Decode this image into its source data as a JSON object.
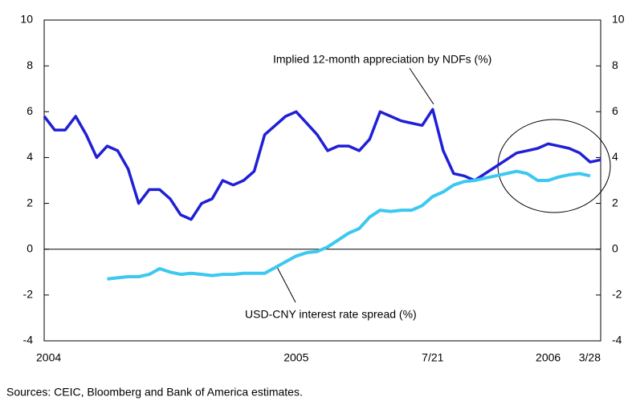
{
  "chart_data": {
    "type": "line",
    "annotations": [
      "Implied 12-month appreciation by NDFs (%)",
      "USD-CNY interest rate spread (%)"
    ],
    "source": "Sources: CEIC, Bloomberg and Bank of America estimates.",
    "categories": [
      "2004",
      null,
      null,
      null,
      null,
      null,
      null,
      null,
      null,
      null,
      null,
      null,
      null,
      null,
      null,
      null,
      null,
      null,
      null,
      null,
      null,
      null,
      null,
      null,
      "2005",
      null,
      null,
      null,
      null,
      null,
      null,
      null,
      null,
      null,
      null,
      null,
      null,
      "7/21",
      null,
      null,
      null,
      null,
      null,
      null,
      null,
      null,
      null,
      null,
      "2006",
      null,
      null,
      null,
      null,
      "3/28"
    ],
    "series": [
      {
        "name": "Implied 12-month appreciation by NDFs (%)",
        "color": "#1f1fd6",
        "values": [
          5.8,
          5.2,
          5.2,
          5.8,
          5.0,
          4.0,
          4.5,
          4.3,
          3.5,
          2.0,
          2.6,
          2.6,
          2.2,
          1.5,
          1.3,
          2.0,
          2.2,
          3.0,
          2.8,
          3.0,
          3.4,
          5.0,
          5.4,
          5.8,
          6.0,
          5.5,
          5.0,
          4.3,
          4.5,
          4.5,
          4.3,
          4.8,
          6.0,
          5.8,
          5.6,
          5.5,
          5.4,
          6.1,
          4.3,
          3.3,
          3.2,
          3.0,
          3.3,
          3.6,
          3.9,
          4.2,
          4.3,
          4.4,
          4.6,
          4.5,
          4.4,
          4.2,
          3.8,
          3.9
        ]
      },
      {
        "name": "USD-CNY interest rate spread (%)",
        "color": "#3cc8f0",
        "values": [
          null,
          null,
          null,
          null,
          null,
          null,
          -1.3,
          -1.25,
          -1.2,
          -1.2,
          -1.1,
          -0.85,
          -1.0,
          -1.1,
          -1.05,
          -1.1,
          -1.15,
          -1.1,
          -1.1,
          -1.05,
          -1.05,
          -1.05,
          -0.8,
          -0.55,
          -0.3,
          -0.15,
          -0.1,
          0.1,
          0.4,
          0.7,
          0.9,
          1.4,
          1.7,
          1.65,
          1.7,
          1.7,
          1.9,
          2.3,
          2.5,
          2.8,
          2.95,
          3.0,
          3.1,
          3.2,
          3.3,
          3.4,
          3.3,
          3.0,
          3.0,
          3.15,
          3.25,
          3.3,
          3.2,
          null
        ],
        "axis": "y2"
      }
    ],
    "ylim": [
      -4,
      10
    ],
    "yticks": [
      -4,
      -2,
      0,
      2,
      4,
      6,
      8,
      10
    ],
    "y2lim": [
      -4,
      10
    ],
    "y2ticks": [
      -4,
      -2,
      0,
      2,
      4,
      6,
      8,
      10
    ]
  }
}
